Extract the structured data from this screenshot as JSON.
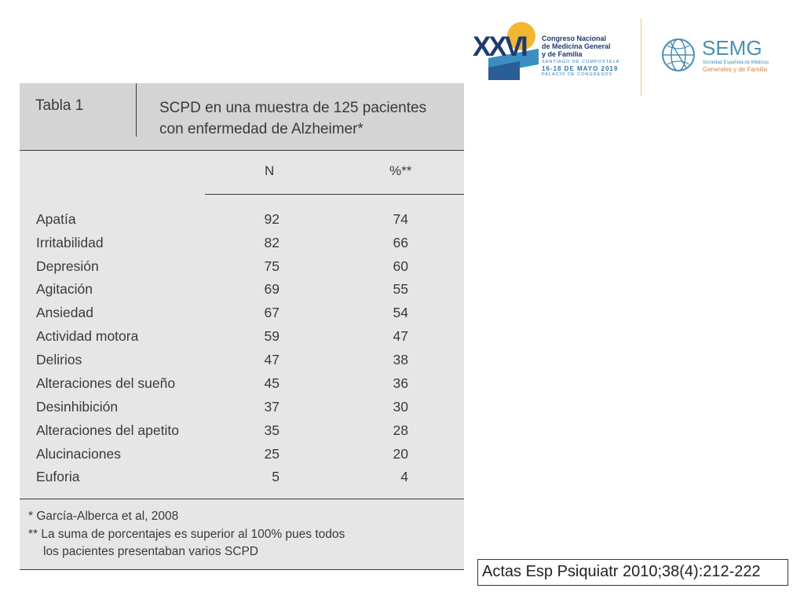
{
  "header": {
    "congress_logo": {
      "numeral": "XXVI",
      "lines": [
        "Congreso Nacional",
        "de Medicina General",
        "y de Familia"
      ],
      "place": "SANTIAGO DE COMPOSTELA",
      "dates": "16-18 DE MAYO 2019",
      "venue": "PALACIO DE CONGRESOS",
      "colors": {
        "navy": "#1f3a6e",
        "blue": "#2b78b0",
        "sun": "#f2b632",
        "teal": "#3a8fc0"
      }
    },
    "semg_logo": {
      "name": "SEMG",
      "subtitle_1": "Sociedad Española de Médicos",
      "subtitle_2": "Generales y de Familia",
      "colors": {
        "blue": "#4a8fb0",
        "orange": "#d9843b"
      }
    }
  },
  "table": {
    "label": "Tabla 1",
    "title_line_1": "SCPD en una muestra de 125 pacientes",
    "title_line_2": "con enfermedad de Alzheimer*",
    "columns": {
      "n": "N",
      "pct": "%**"
    },
    "rows": [
      {
        "label": "Apatía",
        "n": "92",
        "pct": "74"
      },
      {
        "label": "Irritabilidad",
        "n": "82",
        "pct": "66"
      },
      {
        "label": "Depresión",
        "n": "75",
        "pct": "60"
      },
      {
        "label": "Agitación",
        "n": "69",
        "pct": "55"
      },
      {
        "label": "Ansiedad",
        "n": "67",
        "pct": "54"
      },
      {
        "label": "Actividad motora",
        "n": "59",
        "pct": "47"
      },
      {
        "label": "Delirios",
        "n": "47",
        "pct": "38"
      },
      {
        "label": "Alteraciones del sueño",
        "n": "45",
        "pct": "36"
      },
      {
        "label": "Desinhibición",
        "n": "37",
        "pct": "30"
      },
      {
        "label": "Alteraciones del apetito",
        "n": "35",
        "pct": "28"
      },
      {
        "label": "Alucinaciones",
        "n": "25",
        "pct": "20"
      },
      {
        "label": "Euforia",
        "n": "5",
        "pct": "4"
      }
    ],
    "footnotes": [
      "*  García-Alberca et al, 2008",
      "** La suma de porcentajes es superior al 100% pues todos",
      "los pacientes presentaban varios SCPD"
    ]
  },
  "citation": "Actas Esp Psiquiatr 2010;38(4):212-222"
}
